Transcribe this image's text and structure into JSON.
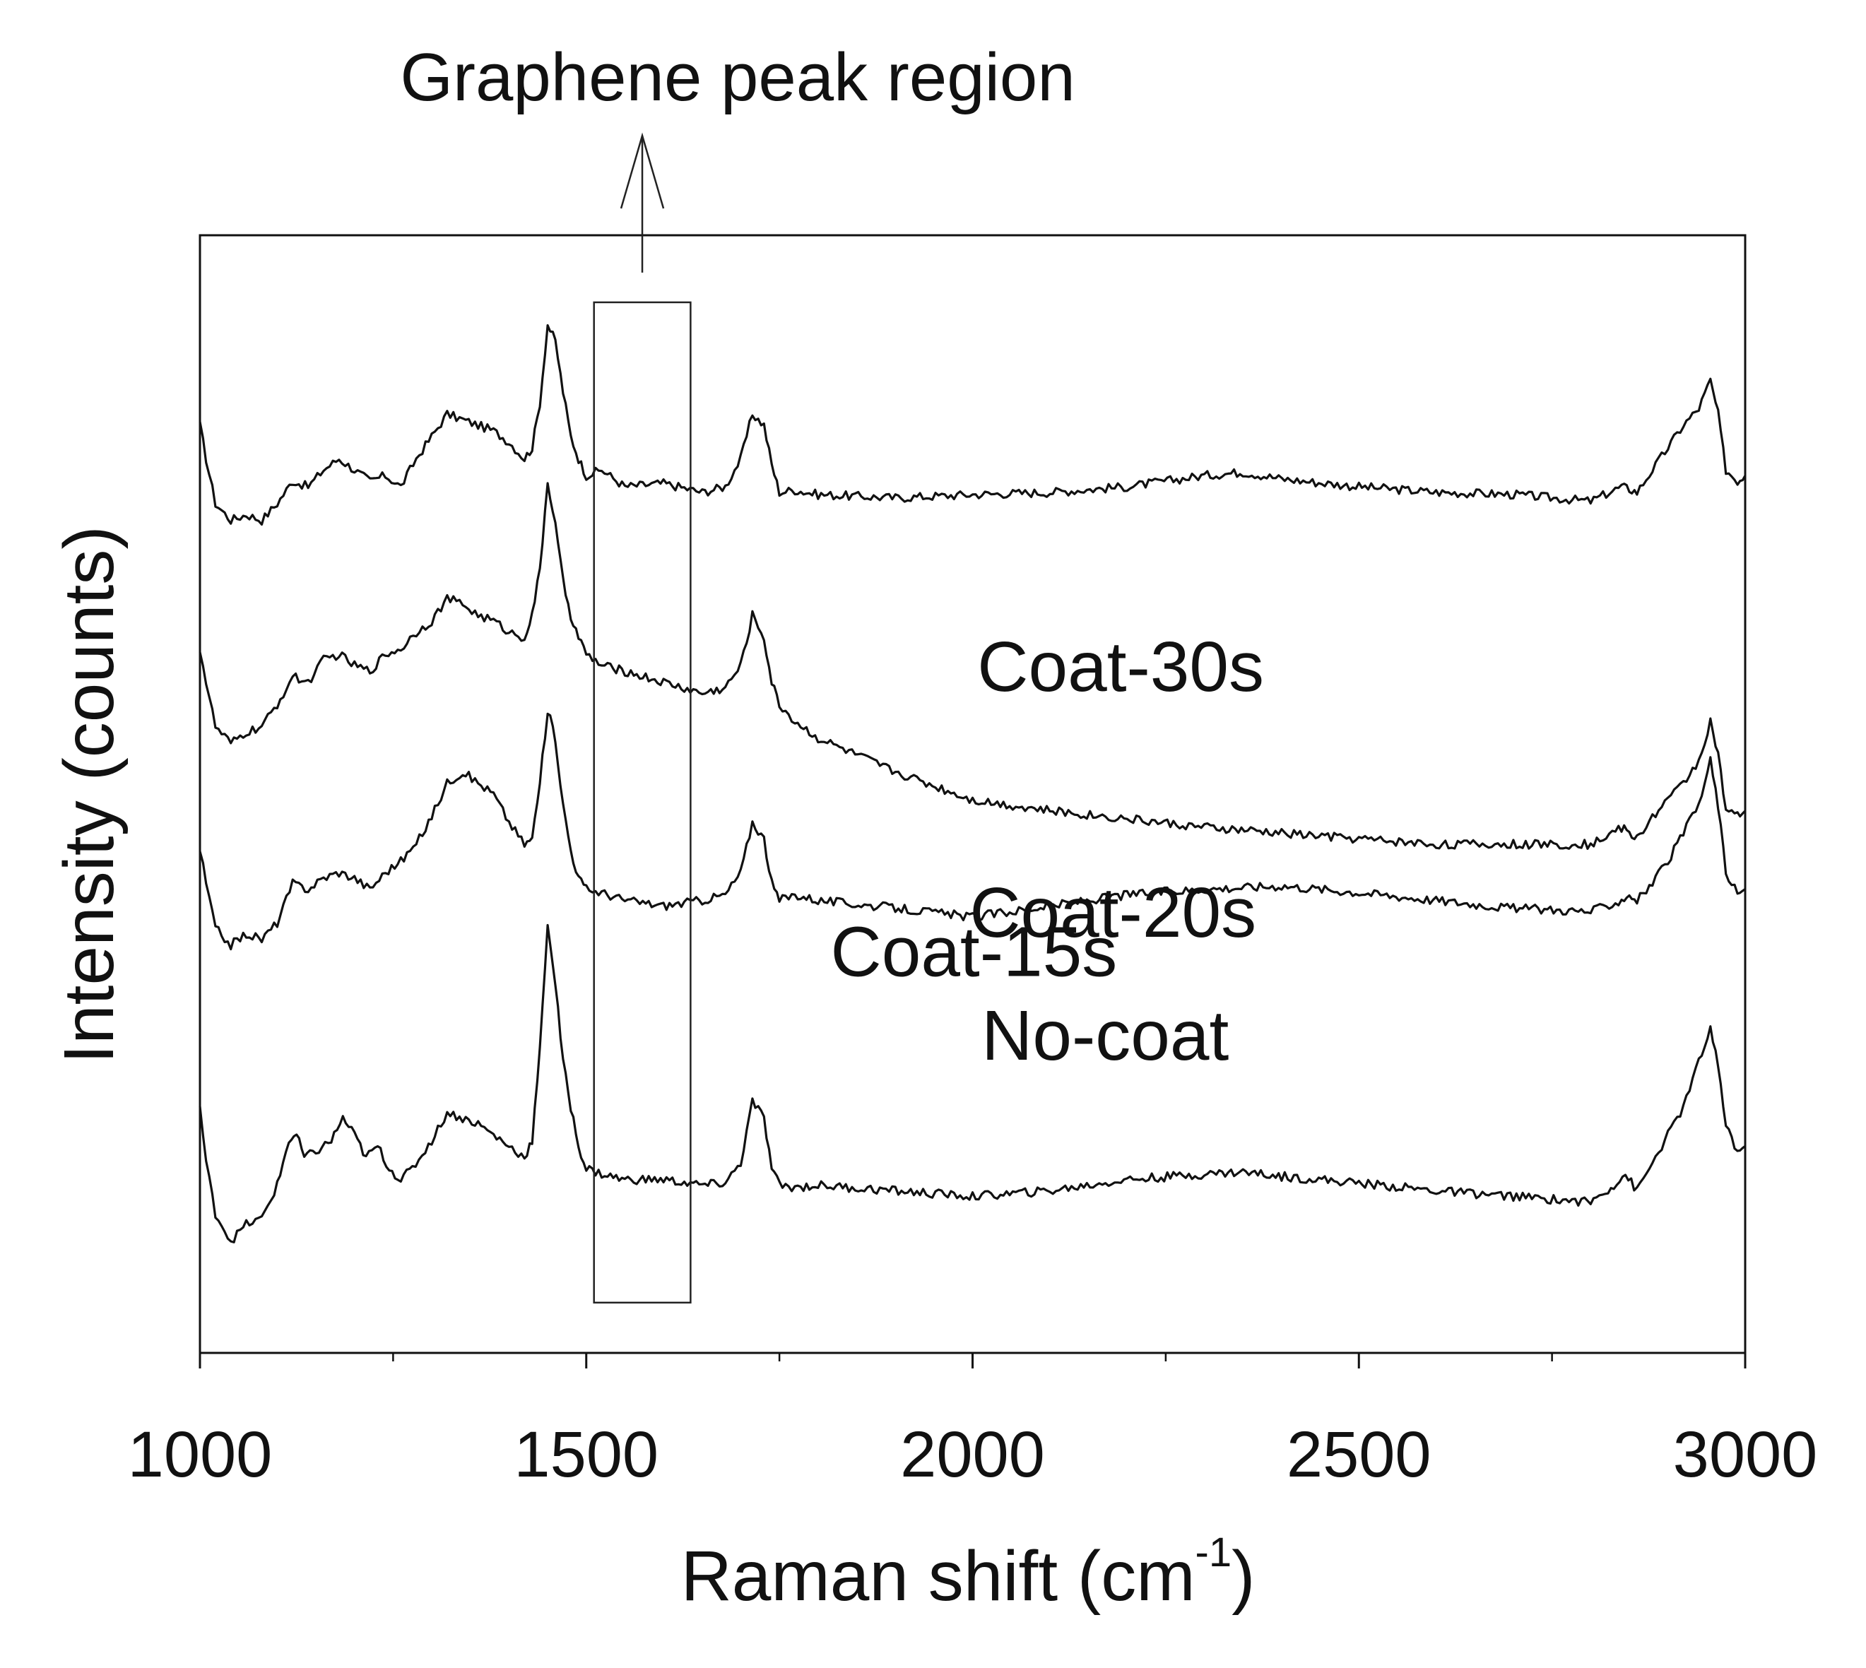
{
  "chart_data": {
    "type": "line",
    "title": "",
    "xlabel": "Raman shift (cm",
    "xlabel_sup": "-1",
    "xlabel_close": ")",
    "ylabel": "Intensity (counts)",
    "xlim": [
      1000,
      3000
    ],
    "ylim": [
      0,
      1
    ],
    "y_ticks_labeled": false,
    "grid": false,
    "x_ticks": [
      1000,
      1500,
      2000,
      2500,
      3000
    ],
    "x_minor_ticks": [
      1250,
      1750,
      2250,
      2750
    ],
    "annotation": {
      "text": "Graphene peak region",
      "box_x_range": [
        1510,
        1635
      ],
      "box_y_range": [
        0.045,
        0.94
      ]
    },
    "series": [
      {
        "name": "Coat-30s",
        "label_position_x": 2210,
        "x": [
          1000,
          1008,
          1020,
          1040,
          1060,
          1080,
          1100,
          1120,
          1140,
          1160,
          1180,
          1200,
          1220,
          1240,
          1260,
          1280,
          1300,
          1320,
          1340,
          1360,
          1380,
          1400,
          1420,
          1430,
          1440,
          1450,
          1460,
          1470,
          1480,
          1490,
          1500,
          1520,
          1550,
          1600,
          1650,
          1680,
          1700,
          1715,
          1730,
          1740,
          1750,
          1770,
          1800,
          1900,
          2000,
          2100,
          2200,
          2300,
          2350,
          2400,
          2500,
          2600,
          2700,
          2800,
          2840,
          2850,
          2860,
          2880,
          2900,
          2920,
          2940,
          2955,
          2965,
          2975,
          2990,
          3000
        ],
        "values": [
          0.83,
          0.8,
          0.76,
          0.745,
          0.75,
          0.745,
          0.76,
          0.78,
          0.775,
          0.79,
          0.8,
          0.79,
          0.78,
          0.785,
          0.775,
          0.8,
          0.82,
          0.84,
          0.835,
          0.83,
          0.825,
          0.815,
          0.8,
          0.81,
          0.85,
          0.92,
          0.905,
          0.86,
          0.82,
          0.8,
          0.785,
          0.79,
          0.775,
          0.778,
          0.77,
          0.775,
          0.8,
          0.84,
          0.83,
          0.795,
          0.77,
          0.772,
          0.768,
          0.765,
          0.768,
          0.77,
          0.775,
          0.785,
          0.788,
          0.782,
          0.775,
          0.77,
          0.768,
          0.762,
          0.775,
          0.773,
          0.77,
          0.79,
          0.81,
          0.83,
          0.845,
          0.87,
          0.84,
          0.79,
          0.78,
          0.785
        ]
      },
      {
        "name": "Coat-20s",
        "label_position_x": 2200,
        "x": [
          1000,
          1008,
          1020,
          1040,
          1060,
          1080,
          1100,
          1120,
          1140,
          1160,
          1180,
          1200,
          1220,
          1240,
          1260,
          1280,
          1300,
          1320,
          1340,
          1360,
          1380,
          1400,
          1420,
          1430,
          1440,
          1450,
          1460,
          1470,
          1480,
          1490,
          1500,
          1520,
          1550,
          1600,
          1650,
          1680,
          1700,
          1715,
          1730,
          1740,
          1750,
          1770,
          1800,
          1900,
          2000,
          2100,
          2200,
          2300,
          2400,
          2500,
          2600,
          2700,
          2800,
          2840,
          2850,
          2860,
          2880,
          2900,
          2920,
          2940,
          2955,
          2965,
          2975,
          2990,
          3000
        ],
        "values": [
          0.63,
          0.6,
          0.56,
          0.545,
          0.555,
          0.56,
          0.58,
          0.605,
          0.6,
          0.62,
          0.625,
          0.615,
          0.61,
          0.625,
          0.63,
          0.645,
          0.655,
          0.675,
          0.67,
          0.66,
          0.655,
          0.645,
          0.64,
          0.66,
          0.7,
          0.78,
          0.74,
          0.69,
          0.66,
          0.64,
          0.625,
          0.615,
          0.61,
          0.6,
          0.59,
          0.595,
          0.615,
          0.66,
          0.64,
          0.6,
          0.58,
          0.565,
          0.55,
          0.52,
          0.495,
          0.485,
          0.478,
          0.47,
          0.465,
          0.46,
          0.455,
          0.455,
          0.455,
          0.47,
          0.465,
          0.46,
          0.48,
          0.495,
          0.51,
          0.53,
          0.565,
          0.535,
          0.485,
          0.48,
          0.485
        ]
      },
      {
        "name": "Coat-15s",
        "label_position_x": 2020,
        "x": [
          1000,
          1008,
          1020,
          1040,
          1060,
          1080,
          1100,
          1120,
          1140,
          1160,
          1180,
          1200,
          1220,
          1240,
          1260,
          1280,
          1300,
          1320,
          1340,
          1360,
          1380,
          1400,
          1420,
          1430,
          1440,
          1450,
          1460,
          1470,
          1480,
          1490,
          1500,
          1520,
          1550,
          1600,
          1650,
          1680,
          1700,
          1715,
          1730,
          1740,
          1750,
          1770,
          1800,
          1900,
          2000,
          2100,
          2200,
          2300,
          2400,
          2500,
          2600,
          2700,
          2800,
          2840,
          2850,
          2860,
          2880,
          2900,
          2920,
          2940,
          2955,
          2965,
          2975,
          2990,
          3000
        ],
        "values": [
          0.45,
          0.42,
          0.38,
          0.365,
          0.375,
          0.37,
          0.385,
          0.42,
          0.415,
          0.425,
          0.43,
          0.425,
          0.415,
          0.43,
          0.44,
          0.455,
          0.48,
          0.51,
          0.52,
          0.51,
          0.5,
          0.475,
          0.455,
          0.46,
          0.51,
          0.575,
          0.55,
          0.49,
          0.45,
          0.425,
          0.415,
          0.412,
          0.405,
          0.4,
          0.405,
          0.41,
          0.43,
          0.475,
          0.46,
          0.42,
          0.405,
          0.41,
          0.405,
          0.398,
          0.39,
          0.4,
          0.41,
          0.415,
          0.418,
          0.412,
          0.405,
          0.398,
          0.395,
          0.405,
          0.41,
          0.405,
          0.42,
          0.44,
          0.465,
          0.49,
          0.53,
          0.49,
          0.43,
          0.41,
          0.415
        ]
      },
      {
        "name": "No-coat",
        "label_position_x": 2190,
        "x": [
          1000,
          1008,
          1020,
          1040,
          1060,
          1080,
          1100,
          1115,
          1125,
          1135,
          1150,
          1170,
          1185,
          1200,
          1215,
          1230,
          1245,
          1260,
          1275,
          1300,
          1320,
          1340,
          1360,
          1380,
          1400,
          1420,
          1430,
          1440,
          1450,
          1460,
          1470,
          1480,
          1490,
          1500,
          1520,
          1550,
          1600,
          1650,
          1680,
          1700,
          1715,
          1730,
          1740,
          1750,
          1770,
          1800,
          1900,
          2000,
          2100,
          2200,
          2300,
          2350,
          2400,
          2500,
          2600,
          2700,
          2800,
          2830,
          2845,
          2860,
          2880,
          2900,
          2920,
          2940,
          2955,
          2965,
          2975,
          2990,
          3000
        ],
        "values": [
          0.22,
          0.17,
          0.125,
          0.1,
          0.115,
          0.12,
          0.15,
          0.19,
          0.195,
          0.175,
          0.18,
          0.19,
          0.21,
          0.195,
          0.175,
          0.185,
          0.165,
          0.155,
          0.165,
          0.19,
          0.215,
          0.21,
          0.205,
          0.195,
          0.185,
          0.175,
          0.19,
          0.27,
          0.385,
          0.33,
          0.26,
          0.22,
          0.185,
          0.165,
          0.16,
          0.155,
          0.155,
          0.15,
          0.152,
          0.17,
          0.225,
          0.21,
          0.165,
          0.15,
          0.148,
          0.15,
          0.145,
          0.14,
          0.145,
          0.155,
          0.16,
          0.162,
          0.158,
          0.152,
          0.145,
          0.14,
          0.135,
          0.15,
          0.16,
          0.145,
          0.17,
          0.195,
          0.22,
          0.26,
          0.29,
          0.255,
          0.205,
          0.18,
          0.185
        ]
      }
    ]
  }
}
